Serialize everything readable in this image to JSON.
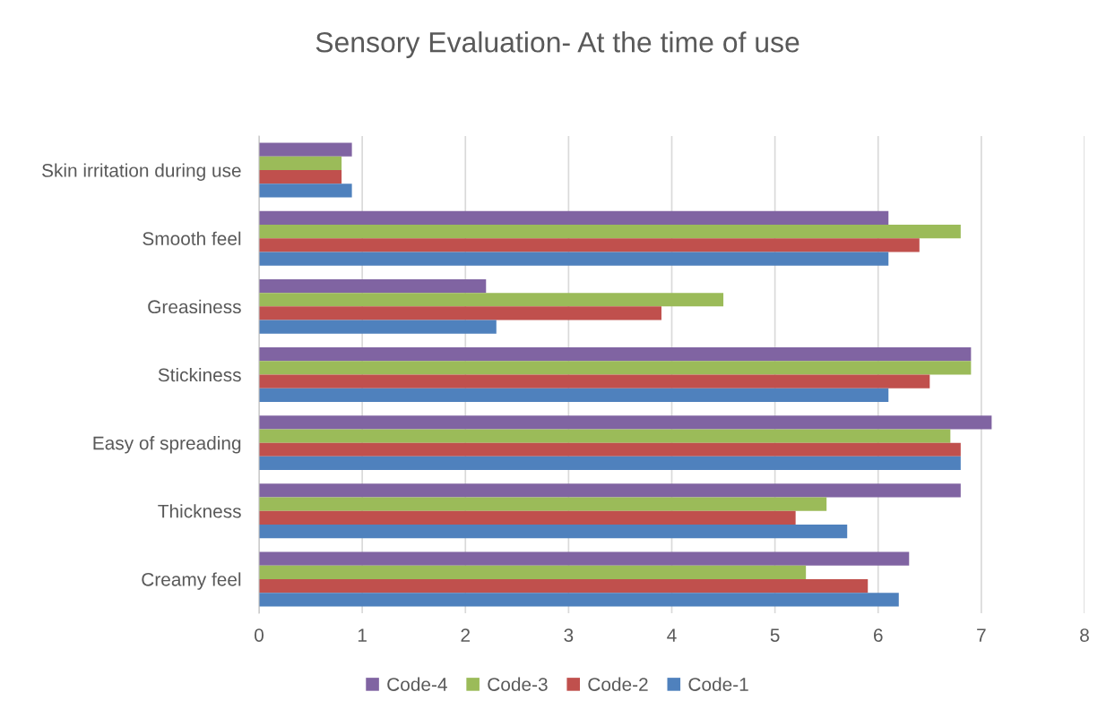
{
  "chart_data": {
    "type": "bar",
    "orientation": "horizontal",
    "title": "Sensory Evaluation- At the time of use",
    "categories": [
      "Skin irritation during use",
      "Smooth feel",
      "Greasiness",
      "Stickiness",
      "Easy of spreading",
      "Thickness",
      "Creamy feel"
    ],
    "series": [
      {
        "name": "Code-4",
        "color": "#8064a2",
        "values": [
          0.9,
          6.1,
          2.2,
          6.9,
          7.1,
          6.8,
          6.3
        ]
      },
      {
        "name": "Code-3",
        "color": "#9bbb59",
        "values": [
          0.8,
          6.8,
          4.5,
          6.9,
          6.7,
          5.5,
          5.3
        ]
      },
      {
        "name": "Code-2",
        "color": "#c0504d",
        "values": [
          0.8,
          6.4,
          3.9,
          6.5,
          6.8,
          5.2,
          5.9
        ]
      },
      {
        "name": "Code-1",
        "color": "#4f81bd",
        "values": [
          0.9,
          6.1,
          2.3,
          6.1,
          6.8,
          5.7,
          6.2
        ]
      }
    ],
    "xlim": [
      0,
      8
    ],
    "xticks": [
      0,
      1,
      2,
      3,
      4,
      5,
      6,
      7,
      8
    ],
    "grid": "x",
    "legend": "bottom"
  }
}
